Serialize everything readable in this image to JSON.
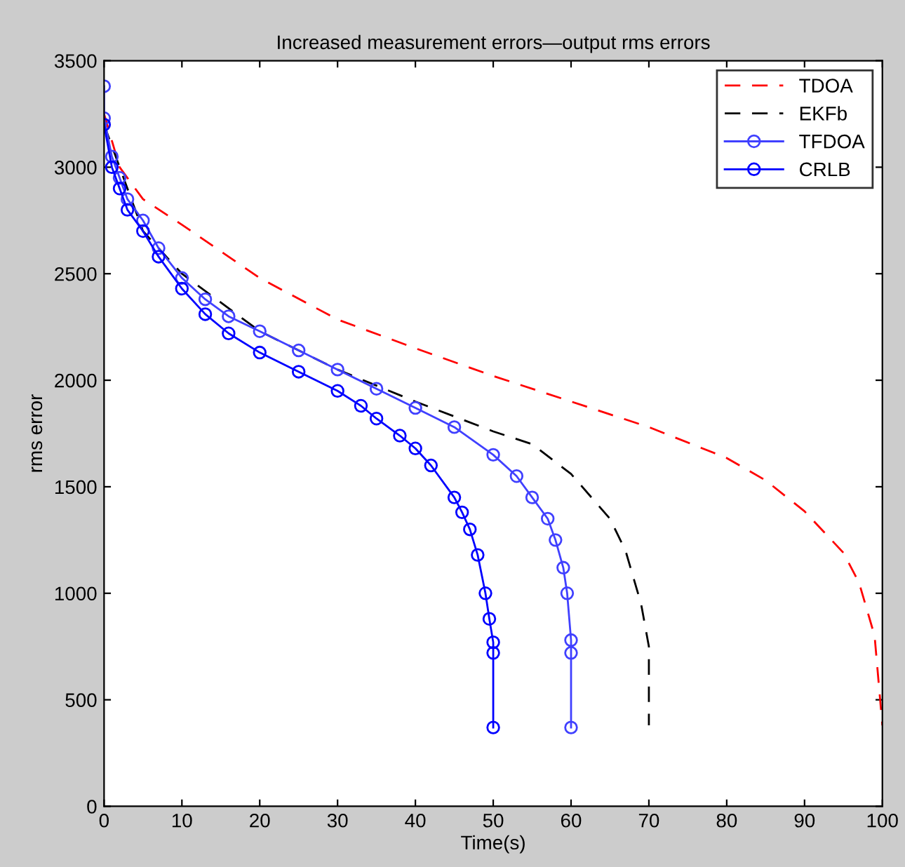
{
  "chart_data": {
    "type": "line",
    "title": "Increased measurement errors—output rms errors",
    "xlabel": "Time(s)",
    "ylabel": "rms error",
    "xlim": [
      0,
      100
    ],
    "xticks": [
      0,
      10,
      20,
      30,
      40,
      50,
      60,
      70,
      80,
      90,
      100
    ],
    "ylim": [
      0,
      3500
    ],
    "yticks": [
      0,
      500,
      1000,
      1500,
      2000,
      2500,
      3000,
      3500
    ],
    "grid": false,
    "legend": "top right",
    "series": [
      {
        "name": "TDOA",
        "color": "#ff0000",
        "line_style": "dashed",
        "marker": "none",
        "x": [
          0,
          2,
          5,
          10,
          20,
          30,
          40,
          50,
          60,
          70,
          80,
          85,
          90,
          95,
          97,
          99,
          100
        ],
        "values": [
          3250,
          3000,
          2850,
          2730,
          2480,
          2285,
          2150,
          2020,
          1900,
          1780,
          1635,
          1530,
          1385,
          1190,
          1050,
          800,
          380
        ]
      },
      {
        "name": "EKFb",
        "color": "#000000",
        "line_style": "dashed",
        "marker": "none",
        "x": [
          0,
          5,
          10,
          20,
          30,
          40,
          50,
          55,
          60,
          65,
          67,
          69,
          70,
          70
        ],
        "values": [
          3200,
          2700,
          2500,
          2230,
          2050,
          1900,
          1760,
          1700,
          1560,
          1350,
          1200,
          950,
          750,
          380
        ]
      },
      {
        "name": "TFDOA",
        "color": "#4040ff",
        "line_style": "solid",
        "marker": "circle",
        "x": [
          0,
          0,
          1,
          2,
          3,
          5,
          7,
          10,
          13,
          16,
          20,
          25,
          30,
          35,
          40,
          45,
          50,
          53,
          55,
          57,
          58,
          59,
          59.5,
          60,
          60,
          60
        ],
        "values": [
          3380,
          3230,
          3050,
          2950,
          2850,
          2750,
          2620,
          2480,
          2380,
          2300,
          2230,
          2140,
          2050,
          1960,
          1870,
          1780,
          1650,
          1550,
          1450,
          1350,
          1250,
          1120,
          1000,
          780,
          720,
          370
        ]
      },
      {
        "name": "CRLB",
        "color": "#0000ff",
        "line_style": "solid",
        "marker": "circle",
        "x": [
          0,
          1,
          2,
          3,
          5,
          7,
          10,
          13,
          16,
          20,
          25,
          30,
          33,
          35,
          38,
          40,
          42,
          45,
          46,
          47,
          48,
          49,
          49.5,
          50,
          50,
          50
        ],
        "values": [
          3200,
          3000,
          2900,
          2800,
          2700,
          2580,
          2430,
          2310,
          2220,
          2130,
          2040,
          1950,
          1880,
          1820,
          1740,
          1680,
          1600,
          1450,
          1380,
          1300,
          1180,
          1000,
          880,
          770,
          720,
          370
        ]
      }
    ]
  }
}
